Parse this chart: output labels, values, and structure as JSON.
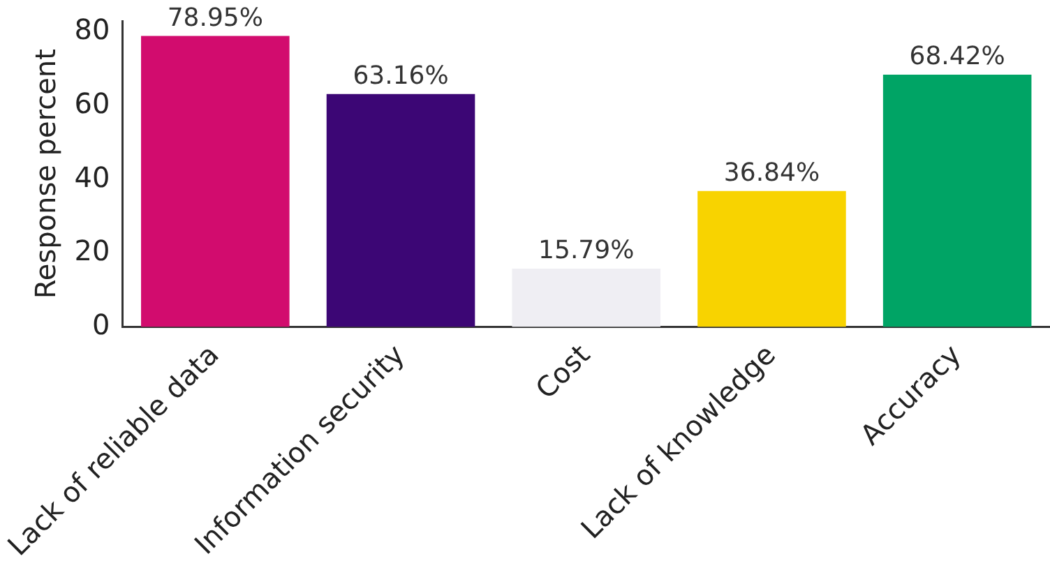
{
  "chart_data": {
    "type": "bar",
    "ylabel": "Response percent",
    "categories": [
      "Lack of reliable data",
      "Information security",
      "Cost",
      "Lack of knowledge",
      "Accuracy"
    ],
    "values": [
      78.95,
      63.16,
      15.79,
      36.84,
      68.42
    ],
    "colors": [
      "#d20c6e",
      "#3c0675",
      "#efeef3",
      "#f8d300",
      "#00a465"
    ],
    "value_labels": [
      "78.95%",
      "63.16%",
      "15.79%",
      "36.84%",
      "68.42%"
    ],
    "ylim": [
      0,
      83
    ],
    "yticks": [
      0,
      20,
      40,
      60,
      80
    ],
    "grid": false,
    "legend": false
  }
}
